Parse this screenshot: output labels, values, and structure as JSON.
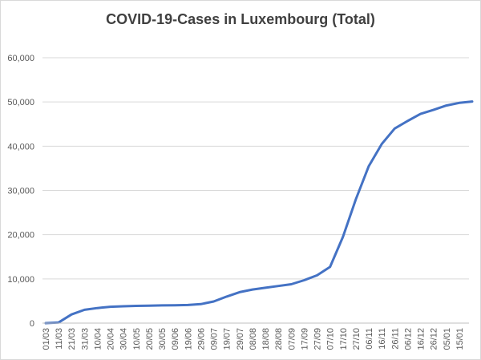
{
  "chart_data": {
    "type": "line",
    "title": "COVID-19-Cases in Luxembourg (Total)",
    "xlabel": "",
    "ylabel": "",
    "ylim": [
      0,
      60000
    ],
    "yticks": [
      "0",
      "10,000",
      "20,000",
      "30,000",
      "40,000",
      "50,000",
      "60,000"
    ],
    "x_tick_labels": [
      "01/03",
      "11/03",
      "21/03",
      "31/03",
      "10/04",
      "20/04",
      "30/04",
      "10/05",
      "20/05",
      "30/05",
      "09/06",
      "19/06",
      "29/06",
      "09/07",
      "19/07",
      "29/07",
      "08/08",
      "18/08",
      "28/08",
      "07/09",
      "17/09",
      "27/09",
      "07/10",
      "17/10",
      "27/10",
      "06/11",
      "16/11",
      "26/11",
      "06/12",
      "16/12",
      "26/12",
      "05/01",
      "15/01"
    ],
    "grid": true,
    "legend": "none",
    "color": "#4472c4",
    "series": [
      {
        "x_index": [
          0,
          1,
          2,
          3,
          4,
          5,
          6,
          7,
          8,
          9,
          10,
          11,
          12,
          13,
          14,
          15,
          16,
          17,
          18,
          19,
          20,
          21,
          22,
          23,
          24,
          25,
          26,
          27,
          28,
          29,
          30,
          31,
          32,
          33
        ],
        "values": [
          0,
          150,
          1950,
          3000,
          3400,
          3700,
          3800,
          3900,
          3950,
          4000,
          4050,
          4100,
          4300,
          4900,
          6000,
          7000,
          7600,
          8000,
          8400,
          8800,
          9700,
          10800,
          12700,
          19500,
          28000,
          35500,
          40500,
          44000,
          45700,
          47300,
          48200,
          49200,
          49800,
          50100
        ]
      }
    ]
  }
}
